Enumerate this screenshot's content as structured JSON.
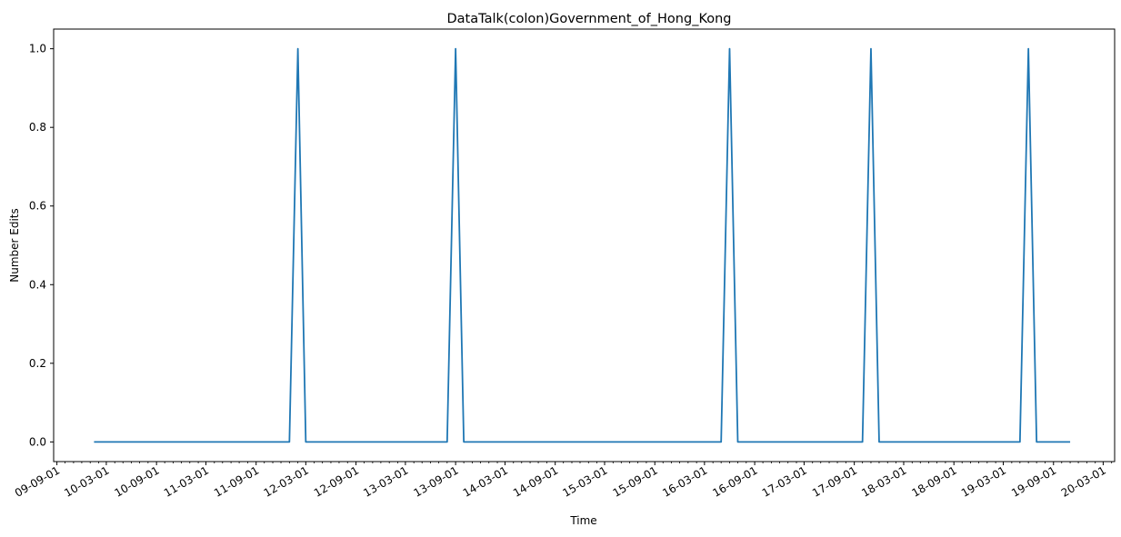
{
  "chart_data": {
    "type": "line",
    "title": "DataTalk(colon)Government_of_Hong_Kong",
    "xlabel": "Time",
    "ylabel": "Number Edits",
    "xlim": [
      "2009-08-20",
      "2020-04-12"
    ],
    "ylim": [
      -0.05,
      1.05
    ],
    "x_tick_labels": [
      "09-09-01",
      "10-03-01",
      "10-09-01",
      "11-03-01",
      "11-09-01",
      "12-03-01",
      "12-09-01",
      "13-03-01",
      "13-09-01",
      "14-03-01",
      "14-09-01",
      "15-03-01",
      "15-09-01",
      "16-03-01",
      "16-09-01",
      "17-03-01",
      "17-09-01",
      "18-03-01",
      "18-09-01",
      "19-03-01",
      "19-09-01",
      "20-03-01"
    ],
    "x_tick_dates": [
      "2009-09-01",
      "2010-03-01",
      "2010-09-01",
      "2011-03-01",
      "2011-09-01",
      "2012-03-01",
      "2012-09-01",
      "2013-03-01",
      "2013-09-01",
      "2014-03-01",
      "2014-09-01",
      "2015-03-01",
      "2015-09-01",
      "2016-03-01",
      "2016-09-01",
      "2017-03-01",
      "2017-09-01",
      "2018-03-01",
      "2018-09-01",
      "2019-03-01",
      "2019-09-01",
      "2020-03-01"
    ],
    "y_ticks": [
      "0.0",
      "0.2",
      "0.4",
      "0.6",
      "0.8",
      "1.0"
    ],
    "y_tick_values": [
      0.0,
      0.2,
      0.4,
      0.6,
      0.8,
      1.0
    ],
    "grid": false,
    "series": [
      {
        "color": "#1f77b4",
        "points": [
          {
            "x": "2010-01-15",
            "y": 0
          },
          {
            "x": "2012-01-01",
            "y": 0
          },
          {
            "x": "2012-02-01",
            "y": 1
          },
          {
            "x": "2012-03-01",
            "y": 0
          },
          {
            "x": "2013-08-01",
            "y": 0
          },
          {
            "x": "2013-09-01",
            "y": 1
          },
          {
            "x": "2013-10-01",
            "y": 0
          },
          {
            "x": "2016-05-01",
            "y": 0
          },
          {
            "x": "2016-06-01",
            "y": 1
          },
          {
            "x": "2016-07-01",
            "y": 0
          },
          {
            "x": "2017-10-01",
            "y": 0
          },
          {
            "x": "2017-11-01",
            "y": 1
          },
          {
            "x": "2017-12-01",
            "y": 0
          },
          {
            "x": "2019-05-01",
            "y": 0
          },
          {
            "x": "2019-06-01",
            "y": 1
          },
          {
            "x": "2019-07-01",
            "y": 0
          },
          {
            "x": "2019-11-01",
            "y": 0
          }
        ]
      }
    ]
  }
}
